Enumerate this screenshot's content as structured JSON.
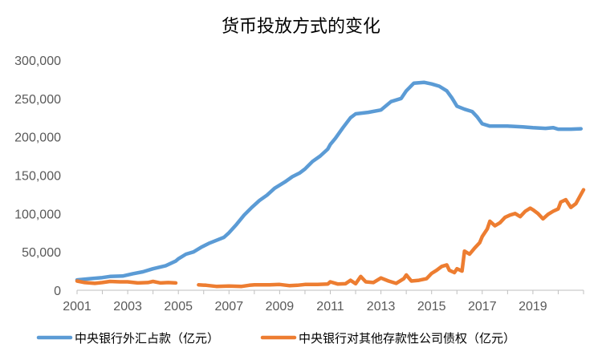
{
  "chart_data": {
    "type": "line",
    "title": "货币投放方式的变化",
    "xlabel": "",
    "ylabel": "",
    "xlim": [
      2001,
      2021
    ],
    "ylim": [
      0,
      300000
    ],
    "grid": false,
    "legend_position": "bottom",
    "x_ticks": [
      "2001",
      "2003",
      "2005",
      "2007",
      "2009",
      "2011",
      "2013",
      "2015",
      "2017",
      "2019"
    ],
    "x_tick_values": [
      2001,
      2003,
      2005,
      2007,
      2009,
      2011,
      2013,
      2015,
      2017,
      2019
    ],
    "y_ticks": [
      "0",
      "50,000",
      "100,000",
      "150,000",
      "200,000",
      "250,000",
      "300,000"
    ],
    "y_tick_values": [
      0,
      50000,
      100000,
      150000,
      200000,
      250000,
      300000
    ],
    "series": [
      {
        "name": "中央银行外汇占款（亿元）",
        "color": "#5B9BD5",
        "segments": [
          [
            [
              2001.0,
              13500
            ],
            [
              2001.5,
              15000
            ],
            [
              2002.0,
              16500
            ],
            [
              2002.3,
              18000
            ],
            [
              2002.8,
              18500
            ],
            [
              2003.2,
              21500
            ],
            [
              2003.6,
              24000
            ],
            [
              2004.0,
              28000
            ],
            [
              2004.5,
              32000
            ],
            [
              2004.9,
              38000
            ],
            [
              2005.0,
              41000
            ],
            [
              2005.3,
              47000
            ],
            [
              2005.6,
              50000
            ],
            [
              2005.9,
              56000
            ],
            [
              2006.2,
              61000
            ],
            [
              2006.5,
              65000
            ],
            [
              2006.8,
              69000
            ],
            [
              2007.0,
              75000
            ],
            [
              2007.3,
              86000
            ],
            [
              2007.6,
              98000
            ],
            [
              2007.9,
              108000
            ],
            [
              2008.2,
              117000
            ],
            [
              2008.5,
              124000
            ],
            [
              2008.8,
              133000
            ],
            [
              2009.2,
              141000
            ],
            [
              2009.5,
              148000
            ],
            [
              2009.8,
              153000
            ],
            [
              2010.0,
              158000
            ],
            [
              2010.3,
              168000
            ],
            [
              2010.6,
              175000
            ],
            [
              2010.9,
              184000
            ],
            [
              2011.0,
              190000
            ],
            [
              2011.2,
              198000
            ],
            [
              2011.5,
              212000
            ],
            [
              2011.8,
              225000
            ],
            [
              2012.0,
              230000
            ],
            [
              2012.5,
              232000
            ],
            [
              2013.0,
              235000
            ],
            [
              2013.4,
              246000
            ],
            [
              2013.8,
              250000
            ],
            [
              2014.0,
              260000
            ],
            [
              2014.3,
              270000
            ],
            [
              2014.7,
              271000
            ],
            [
              2015.0,
              269000
            ],
            [
              2015.3,
              266000
            ],
            [
              2015.6,
              260000
            ],
            [
              2015.8,
              251000
            ],
            [
              2016.0,
              240000
            ],
            [
              2016.3,
              236000
            ],
            [
              2016.6,
              233000
            ],
            [
              2016.8,
              226000
            ],
            [
              2017.0,
              217000
            ],
            [
              2017.3,
              214000
            ],
            [
              2018.0,
              214000
            ],
            [
              2018.6,
              213000
            ],
            [
              2019.0,
              212000
            ],
            [
              2019.5,
              211000
            ],
            [
              2019.8,
              212000
            ],
            [
              2020.0,
              210000
            ],
            [
              2020.5,
              210000
            ],
            [
              2020.9,
              210500
            ]
          ]
        ]
      },
      {
        "name": "中央银行对其他存款性公司债权（亿元）",
        "color": "#ED7D31",
        "segments": [
          [
            [
              2001.0,
              12000
            ],
            [
              2001.3,
              10000
            ],
            [
              2001.7,
              9000
            ],
            [
              2002.0,
              10000
            ],
            [
              2002.3,
              11500
            ],
            [
              2002.7,
              11000
            ],
            [
              2003.0,
              11000
            ],
            [
              2003.4,
              9500
            ],
            [
              2003.8,
              10000
            ],
            [
              2004.0,
              11500
            ],
            [
              2004.3,
              9500
            ],
            [
              2004.6,
              10000
            ],
            [
              2004.9,
              9500
            ]
          ],
          [
            [
              2005.8,
              7000
            ],
            [
              2006.1,
              6500
            ],
            [
              2006.5,
              5000
            ],
            [
              2007.0,
              5500
            ],
            [
              2007.5,
              5000
            ],
            [
              2007.8,
              6500
            ],
            [
              2008.0,
              7000
            ],
            [
              2008.6,
              7000
            ],
            [
              2009.0,
              7500
            ],
            [
              2009.4,
              6000
            ],
            [
              2009.7,
              6500
            ],
            [
              2010.0,
              7500
            ],
            [
              2010.5,
              7500
            ],
            [
              2010.9,
              8000
            ],
            [
              2011.0,
              11000
            ],
            [
              2011.3,
              8000
            ],
            [
              2011.6,
              8500
            ],
            [
              2011.8,
              13000
            ],
            [
              2012.0,
              8500
            ],
            [
              2012.2,
              18000
            ],
            [
              2012.4,
              11000
            ],
            [
              2012.7,
              10000
            ],
            [
              2013.0,
              16000
            ],
            [
              2013.3,
              12000
            ],
            [
              2013.6,
              9000
            ],
            [
              2013.9,
              15000
            ],
            [
              2014.0,
              20000
            ],
            [
              2014.2,
              12000
            ],
            [
              2014.5,
              13000
            ],
            [
              2014.8,
              15000
            ],
            [
              2015.0,
              22000
            ],
            [
              2015.2,
              26000
            ],
            [
              2015.4,
              31000
            ],
            [
              2015.6,
              33000
            ],
            [
              2015.7,
              26000
            ],
            [
              2015.9,
              23000
            ],
            [
              2016.0,
              28000
            ],
            [
              2016.2,
              25000
            ],
            [
              2016.3,
              51000
            ],
            [
              2016.5,
              47000
            ],
            [
              2016.7,
              55000
            ],
            [
              2016.9,
              62000
            ],
            [
              2017.0,
              70000
            ],
            [
              2017.2,
              80000
            ],
            [
              2017.3,
              90000
            ],
            [
              2017.5,
              84000
            ],
            [
              2017.7,
              88000
            ],
            [
              2017.9,
              95000
            ],
            [
              2018.1,
              98000
            ],
            [
              2018.3,
              100000
            ],
            [
              2018.5,
              96000
            ],
            [
              2018.7,
              103000
            ],
            [
              2018.9,
              107000
            ],
            [
              2019.0,
              105000
            ],
            [
              2019.2,
              100000
            ],
            [
              2019.4,
              93000
            ],
            [
              2019.6,
              99000
            ],
            [
              2019.8,
              103000
            ],
            [
              2020.0,
              106000
            ],
            [
              2020.1,
              115000
            ],
            [
              2020.3,
              118000
            ],
            [
              2020.5,
              108000
            ],
            [
              2020.7,
              113000
            ],
            [
              2020.9,
              125000
            ],
            [
              2021.0,
              131000
            ]
          ]
        ]
      }
    ]
  }
}
